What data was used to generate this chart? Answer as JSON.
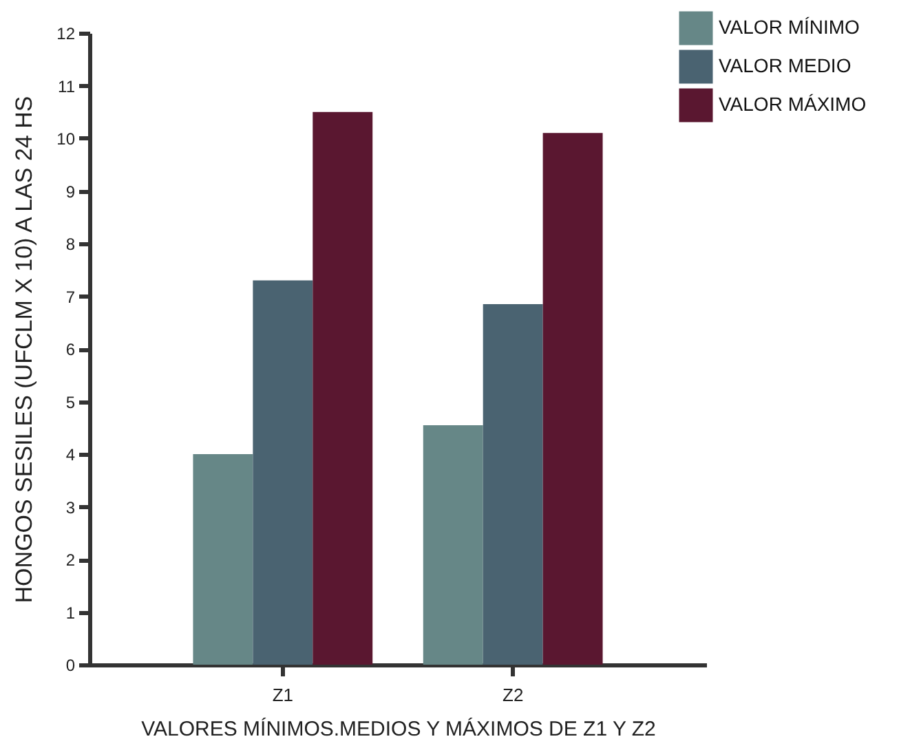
{
  "chart_data": {
    "type": "bar",
    "xlabel": "VALORES MÍNIMOS.MEDIOS Y MÁXIMOS DE Z1 Y Z2",
    "ylabel": "HONGOS SESILES (UFCLM X 10) A LAS 24 HS",
    "categories": [
      "Z1",
      "Z2"
    ],
    "series": [
      {
        "name": "VALOR MÍNIMO",
        "color": "#668787",
        "values": [
          4.0,
          4.55
        ]
      },
      {
        "name": "VALOR MEDIO",
        "color": "#4a6371",
        "values": [
          7.3,
          6.85
        ]
      },
      {
        "name": "VALOR MÁXIMO",
        "color": "#5a1730",
        "values": [
          10.5,
          10.1
        ]
      }
    ],
    "ylim": [
      0,
      12
    ],
    "yticks": [
      0,
      1,
      2,
      3,
      4,
      5,
      6,
      7,
      8,
      9,
      10,
      11,
      12
    ],
    "grid": false,
    "legend": "top right"
  }
}
